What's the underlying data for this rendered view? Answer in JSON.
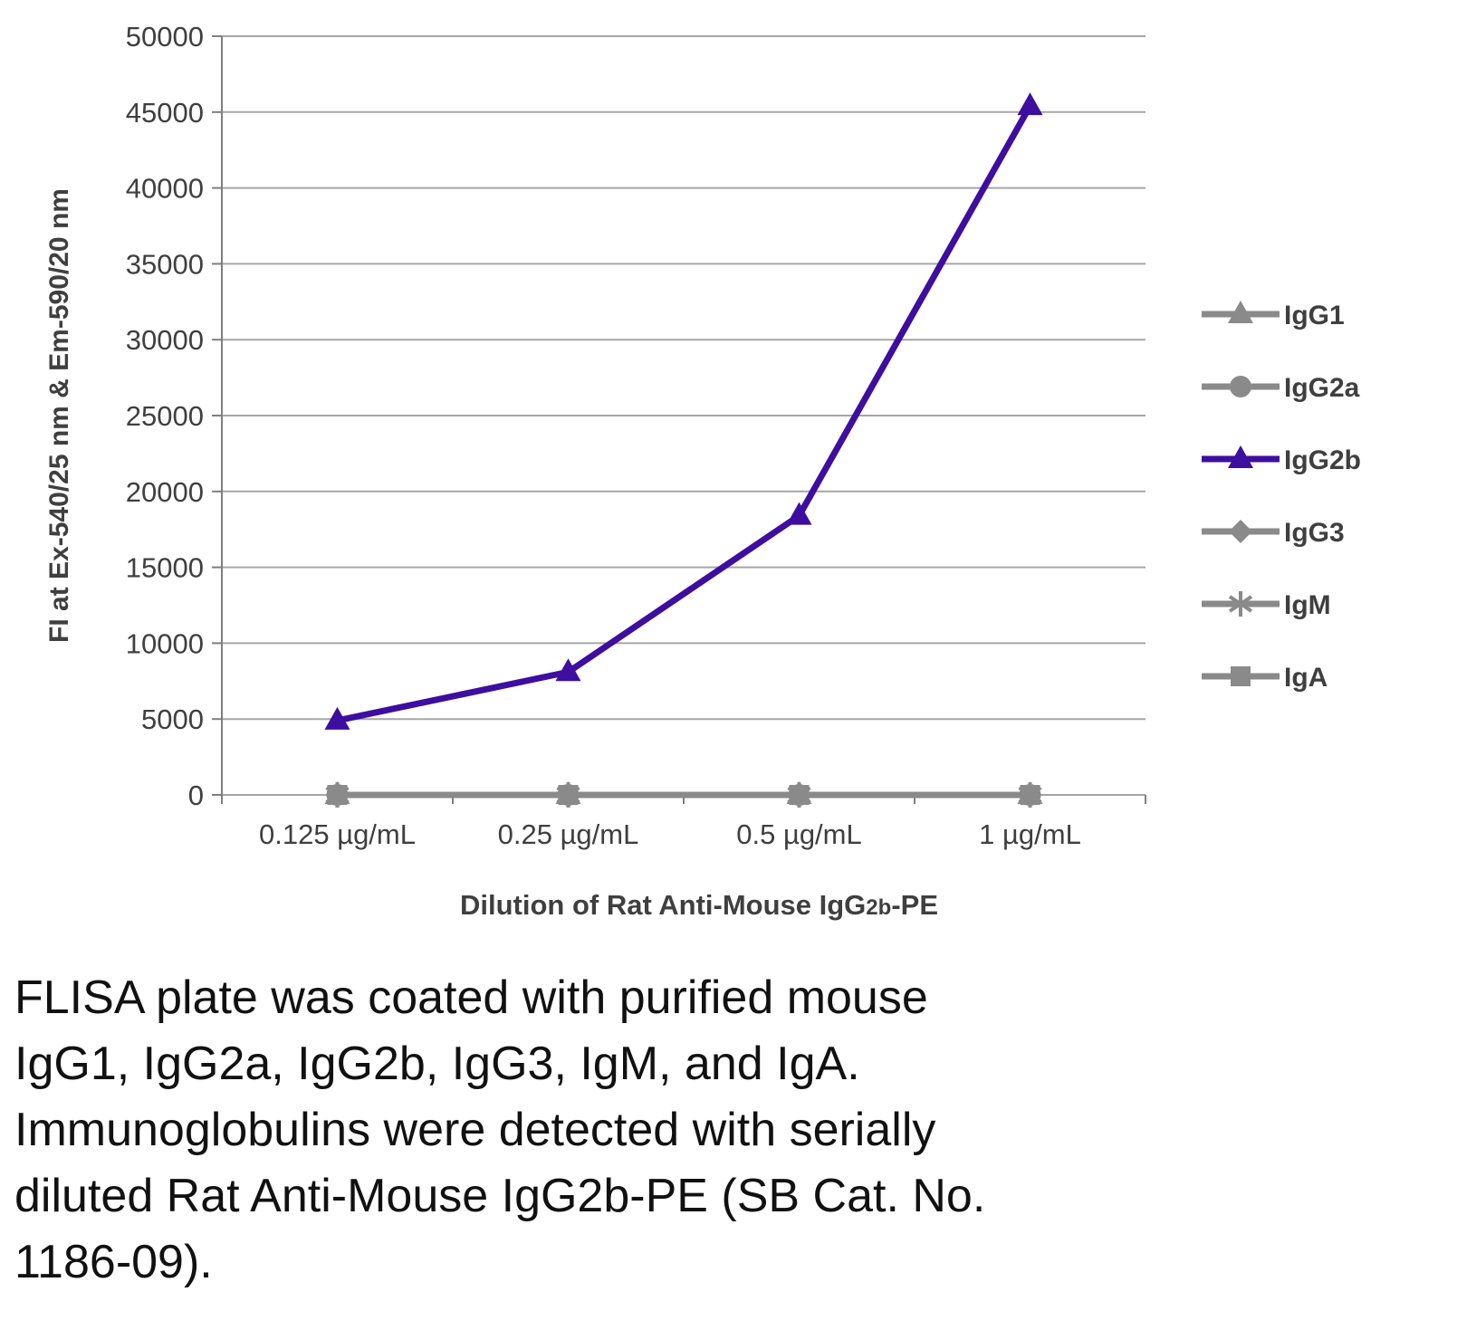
{
  "chart_data": {
    "type": "line",
    "categories": [
      "0.125 µg/mL",
      "0.25 µg/mL",
      "0.5 µg/mL",
      "1 µg/mL"
    ],
    "series": [
      {
        "name": "IgG1",
        "marker": "triangle",
        "color": "#8a8a8a",
        "values": [
          0,
          0,
          0,
          0
        ]
      },
      {
        "name": "IgG2a",
        "marker": "circle",
        "color": "#8a8a8a",
        "values": [
          0,
          0,
          0,
          0
        ]
      },
      {
        "name": "IgG2b",
        "marker": "triangle",
        "color": "#3d0e9f",
        "values": [
          4900,
          8100,
          18400,
          45400
        ]
      },
      {
        "name": "IgG3",
        "marker": "diamond",
        "color": "#8a8a8a",
        "values": [
          0,
          0,
          0,
          0
        ]
      },
      {
        "name": "IgM",
        "marker": "asterisk",
        "color": "#8a8a8a",
        "values": [
          0,
          0,
          0,
          0
        ]
      },
      {
        "name": "IgA",
        "marker": "square",
        "color": "#8a8a8a",
        "values": [
          0,
          0,
          0,
          0
        ]
      }
    ],
    "ylabel": "FI at Ex-540/25 nm & Em-590/20 nm",
    "xlabel": {
      "pre": "Dilution of Rat Anti-Mouse IgG",
      "sub": "2b",
      "post": "-PE"
    },
    "ylim": [
      0,
      50000
    ],
    "yticks": [
      0,
      5000,
      10000,
      15000,
      20000,
      25000,
      30000,
      35000,
      40000,
      45000,
      50000
    ],
    "grid": true,
    "legend_position": "right"
  },
  "caption": {
    "lines": [
      "FLISA plate was coated with purified mouse",
      "IgG1, IgG2a, IgG2b, IgG3, IgM, and IgA.",
      "Immunoglobulins were detected with serially",
      "diluted Rat Anti-Mouse IgG2b-PE (SB Cat. No.",
      "1186-09)."
    ]
  },
  "colors": {
    "accent_purple": "#3d0e9f",
    "series_gray": "#8a8a8a",
    "grid": "#a6a6a6",
    "axis": "#7f7f7f",
    "text": "#3f3f3f"
  }
}
